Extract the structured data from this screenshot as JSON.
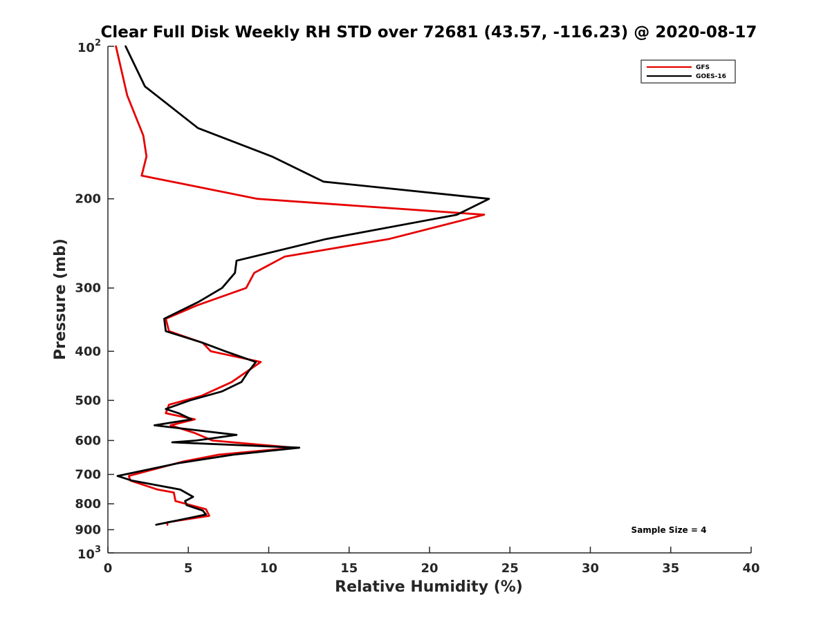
{
  "chart_data": {
    "type": "line",
    "title": "Clear Full Disk Weekly RH STD over 72681 (43.57, -116.23) @ 2020-08-17",
    "xlabel": "Relative Humidity (%)",
    "ylabel": "Pressure (mb)",
    "xlim": [
      0,
      40
    ],
    "ylim": [
      100,
      1000
    ],
    "yscale": "log",
    "y_reversed": true,
    "grid": false,
    "legend_position": "top-right",
    "x_ticks": [
      "0",
      "5",
      "10",
      "15",
      "20",
      "25",
      "30",
      "35",
      "40"
    ],
    "y_ticks": [
      {
        "value": 100,
        "base": "10",
        "exp": "2"
      },
      {
        "value": 200,
        "label": "200"
      },
      {
        "value": 300,
        "label": "300"
      },
      {
        "value": 400,
        "label": "400"
      },
      {
        "value": 500,
        "label": "500"
      },
      {
        "value": 600,
        "label": "600"
      },
      {
        "value": 700,
        "label": "700"
      },
      {
        "value": 800,
        "label": "800"
      },
      {
        "value": 900,
        "label": "900"
      },
      {
        "value": 1000,
        "base": "10",
        "exp": "3"
      }
    ],
    "annotation": "Sample Size = 4",
    "series": [
      {
        "name": "GFS",
        "color": "#e60000",
        "points": [
          [
            0.5,
            100
          ],
          [
            1.2,
            125
          ],
          [
            2.2,
            150
          ],
          [
            2.4,
            165
          ],
          [
            2.1,
            180
          ],
          [
            9.3,
            200
          ],
          [
            23.4,
            215
          ],
          [
            17.5,
            240
          ],
          [
            11.0,
            260
          ],
          [
            9.1,
            280
          ],
          [
            8.6,
            300
          ],
          [
            5.5,
            325
          ],
          [
            3.6,
            345
          ],
          [
            3.8,
            365
          ],
          [
            5.9,
            385
          ],
          [
            6.4,
            400
          ],
          [
            9.5,
            420
          ],
          [
            7.7,
            460
          ],
          [
            5.8,
            490
          ],
          [
            3.8,
            510
          ],
          [
            3.6,
            530
          ],
          [
            5.4,
            545
          ],
          [
            3.9,
            560
          ],
          [
            5.4,
            580
          ],
          [
            6.5,
            600
          ],
          [
            11.6,
            620
          ],
          [
            6.9,
            640
          ],
          [
            4.7,
            660
          ],
          [
            1.3,
            705
          ],
          [
            1.4,
            720
          ],
          [
            3.1,
            750
          ],
          [
            4.1,
            760
          ],
          [
            4.2,
            790
          ],
          [
            6.1,
            820
          ],
          [
            6.3,
            845
          ],
          [
            3.7,
            870
          ],
          [
            3.7,
            880
          ]
        ]
      },
      {
        "name": "GOES-16",
        "color": "#000000",
        "points": [
          [
            1.1,
            100
          ],
          [
            2.3,
            120
          ],
          [
            5.6,
            145
          ],
          [
            10.2,
            165
          ],
          [
            13.4,
            185
          ],
          [
            23.7,
            200
          ],
          [
            21.7,
            215
          ],
          [
            13.6,
            240
          ],
          [
            8.0,
            265
          ],
          [
            7.9,
            280
          ],
          [
            7.1,
            300
          ],
          [
            5.6,
            320
          ],
          [
            3.5,
            345
          ],
          [
            3.6,
            365
          ],
          [
            5.9,
            385
          ],
          [
            7.3,
            400
          ],
          [
            9.2,
            420
          ],
          [
            8.7,
            440
          ],
          [
            8.3,
            460
          ],
          [
            7.1,
            480
          ],
          [
            5.1,
            500
          ],
          [
            3.6,
            520
          ],
          [
            4.4,
            530
          ],
          [
            5.2,
            545
          ],
          [
            2.9,
            560
          ],
          [
            8.0,
            585
          ],
          [
            5.5,
            600
          ],
          [
            4.0,
            605
          ],
          [
            11.9,
            620
          ],
          [
            7.8,
            640
          ],
          [
            4.4,
            665
          ],
          [
            0.6,
            705
          ],
          [
            1.5,
            720
          ],
          [
            4.5,
            750
          ],
          [
            5.3,
            775
          ],
          [
            4.8,
            790
          ],
          [
            4.9,
            805
          ],
          [
            5.9,
            825
          ],
          [
            6.1,
            840
          ],
          [
            3.0,
            880
          ]
        ]
      }
    ]
  }
}
